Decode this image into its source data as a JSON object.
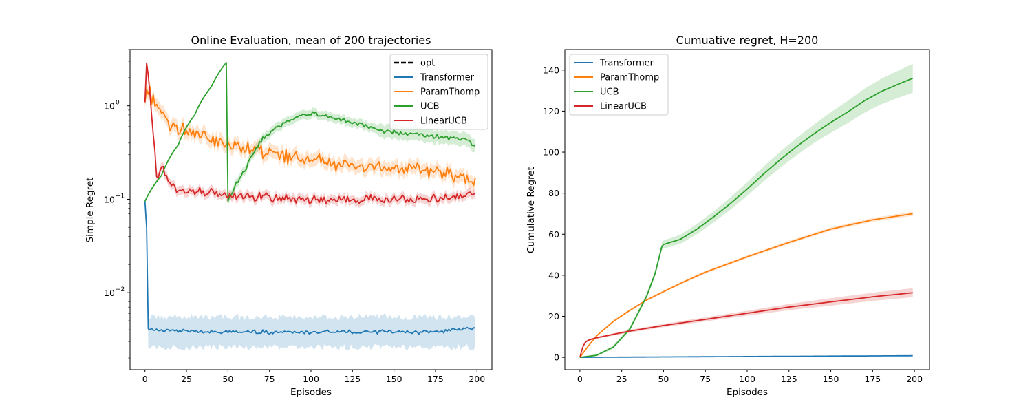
{
  "chart_data": [
    {
      "type": "line",
      "title": "Online Evaluation, mean of 200 trajectories",
      "xlabel": "Episodes",
      "ylabel": "Simple Regret",
      "yscale": "log",
      "xlim": [
        -9,
        209
      ],
      "ylim": [
        0.0015,
        4.0
      ],
      "xticks": [
        "0",
        "25",
        "50",
        "75",
        "100",
        "125",
        "150",
        "175",
        "200"
      ],
      "ytick_major": [
        {
          "base": "10",
          "exp": "0",
          "value": 1
        },
        {
          "base": "10",
          "exp": "−1",
          "value": 0.1
        },
        {
          "base": "10",
          "exp": "−2",
          "value": 0.01
        }
      ],
      "legend_position": "upper right",
      "legend": [
        "opt",
        "Transformer",
        "ParamThomp",
        "UCB",
        "LinearUCB"
      ],
      "series": [
        {
          "name": "opt",
          "color": "#000000",
          "style": "dashed",
          "values": []
        },
        {
          "name": "Transformer",
          "color": "#1f77b4",
          "x": [
            0,
            2,
            10,
            25,
            50,
            75,
            100,
            125,
            150,
            175,
            199
          ],
          "y": [
            0.095,
            0.0042,
            0.0039,
            0.0039,
            0.0038,
            0.0038,
            0.0038,
            0.0038,
            0.0038,
            0.0038,
            0.0042
          ],
          "band": [
            0.0026,
            0.0055
          ]
        },
        {
          "name": "ParamThomp",
          "color": "#ff7f0e",
          "x": [
            0,
            1,
            5,
            10,
            15,
            25,
            35,
            50,
            75,
            100,
            125,
            150,
            175,
            199
          ],
          "y": [
            1.05,
            1.5,
            1.15,
            0.8,
            0.62,
            0.55,
            0.45,
            0.38,
            0.3,
            0.26,
            0.23,
            0.21,
            0.2,
            0.15
          ]
        },
        {
          "name": "UCB",
          "color": "#2ca02c",
          "x": [
            0,
            10,
            20,
            30,
            40,
            49,
            50,
            60,
            70,
            80,
            90,
            100,
            110,
            120,
            130,
            140,
            150,
            160,
            170,
            180,
            190,
            199
          ],
          "y": [
            0.095,
            0.18,
            0.38,
            0.8,
            1.6,
            2.9,
            0.095,
            0.2,
            0.42,
            0.6,
            0.75,
            0.82,
            0.78,
            0.7,
            0.62,
            0.56,
            0.52,
            0.5,
            0.48,
            0.46,
            0.45,
            0.37
          ]
        },
        {
          "name": "LinearUCB",
          "color": "#d62728",
          "x": [
            0,
            1,
            3,
            5,
            7,
            10,
            15,
            20,
            30,
            50,
            75,
            100,
            125,
            150,
            175,
            199
          ],
          "y": [
            1.1,
            2.85,
            1.2,
            0.5,
            0.17,
            0.22,
            0.14,
            0.13,
            0.12,
            0.11,
            0.105,
            0.1,
            0.1,
            0.1,
            0.1,
            0.115
          ]
        }
      ]
    },
    {
      "type": "line",
      "title": "Cumuative regret, H=200",
      "xlabel": "Episodes",
      "ylabel": "Cumulative Regret",
      "xlim": [
        -9,
        209
      ],
      "ylim": [
        -6,
        150
      ],
      "xticks": [
        "0",
        "25",
        "50",
        "75",
        "100",
        "125",
        "150",
        "175",
        "200"
      ],
      "yticks": [
        "0",
        "20",
        "40",
        "60",
        "80",
        "100",
        "120",
        "140"
      ],
      "legend_position": "upper left",
      "legend": [
        "Transformer",
        "ParamThomp",
        "UCB",
        "LinearUCB"
      ],
      "series": [
        {
          "name": "Transformer",
          "color": "#1f77b4",
          "x": [
            0,
            50,
            100,
            150,
            199
          ],
          "y": [
            0,
            0.2,
            0.4,
            0.6,
            0.8
          ],
          "band_half": [
            0,
            0,
            0,
            0,
            0
          ]
        },
        {
          "name": "ParamThomp",
          "color": "#ff7f0e",
          "x": [
            0,
            5,
            10,
            20,
            30,
            40,
            50,
            60,
            75,
            100,
            125,
            150,
            175,
            199
          ],
          "y": [
            0,
            5.5,
            10.5,
            17.5,
            23,
            28,
            32,
            36,
            41.5,
            49,
            56,
            62.5,
            67,
            70
          ],
          "band_half": [
            0,
            0.3,
            0.4,
            0.5,
            0.5,
            0.5,
            0.6,
            0.6,
            0.7,
            0.7,
            0.8,
            0.8,
            0.9,
            1.0
          ]
        },
        {
          "name": "UCB",
          "color": "#2ca02c",
          "x": [
            0,
            10,
            20,
            30,
            40,
            45,
            49,
            50,
            60,
            70,
            80,
            90,
            100,
            110,
            120,
            130,
            140,
            150,
            160,
            170,
            180,
            190,
            199
          ],
          "y": [
            0,
            1,
            5,
            14,
            30,
            41,
            54,
            55,
            57.5,
            62.5,
            68.5,
            75,
            82,
            89.5,
            96.5,
            103,
            109,
            114.5,
            119.5,
            125,
            129.5,
            133,
            136
          ],
          "band_half": [
            0,
            0.5,
            0.8,
            1.0,
            1.3,
            1.5,
            1.8,
            2,
            2.2,
            2.5,
            2.7,
            3,
            3.3,
            3.6,
            3.9,
            4.2,
            4.5,
            5,
            5.4,
            5.8,
            6.2,
            6.6,
            7
          ]
        },
        {
          "name": "LinearUCB",
          "color": "#d62728",
          "x": [
            0,
            1,
            2,
            3,
            4,
            5,
            7,
            10,
            20,
            30,
            50,
            75,
            100,
            125,
            150,
            175,
            199
          ],
          "y": [
            0,
            3,
            5.5,
            7,
            7.8,
            8.3,
            8.9,
            9.5,
            11.2,
            12.8,
            15.5,
            18.5,
            21.5,
            24.5,
            27,
            29.5,
            31.5
          ],
          "band_half": [
            0,
            0.2,
            0.3,
            0.4,
            0.4,
            0.4,
            0.4,
            0.5,
            0.6,
            0.7,
            0.8,
            1.0,
            1.2,
            1.5,
            1.8,
            2.0,
            2.2
          ]
        }
      ]
    }
  ]
}
